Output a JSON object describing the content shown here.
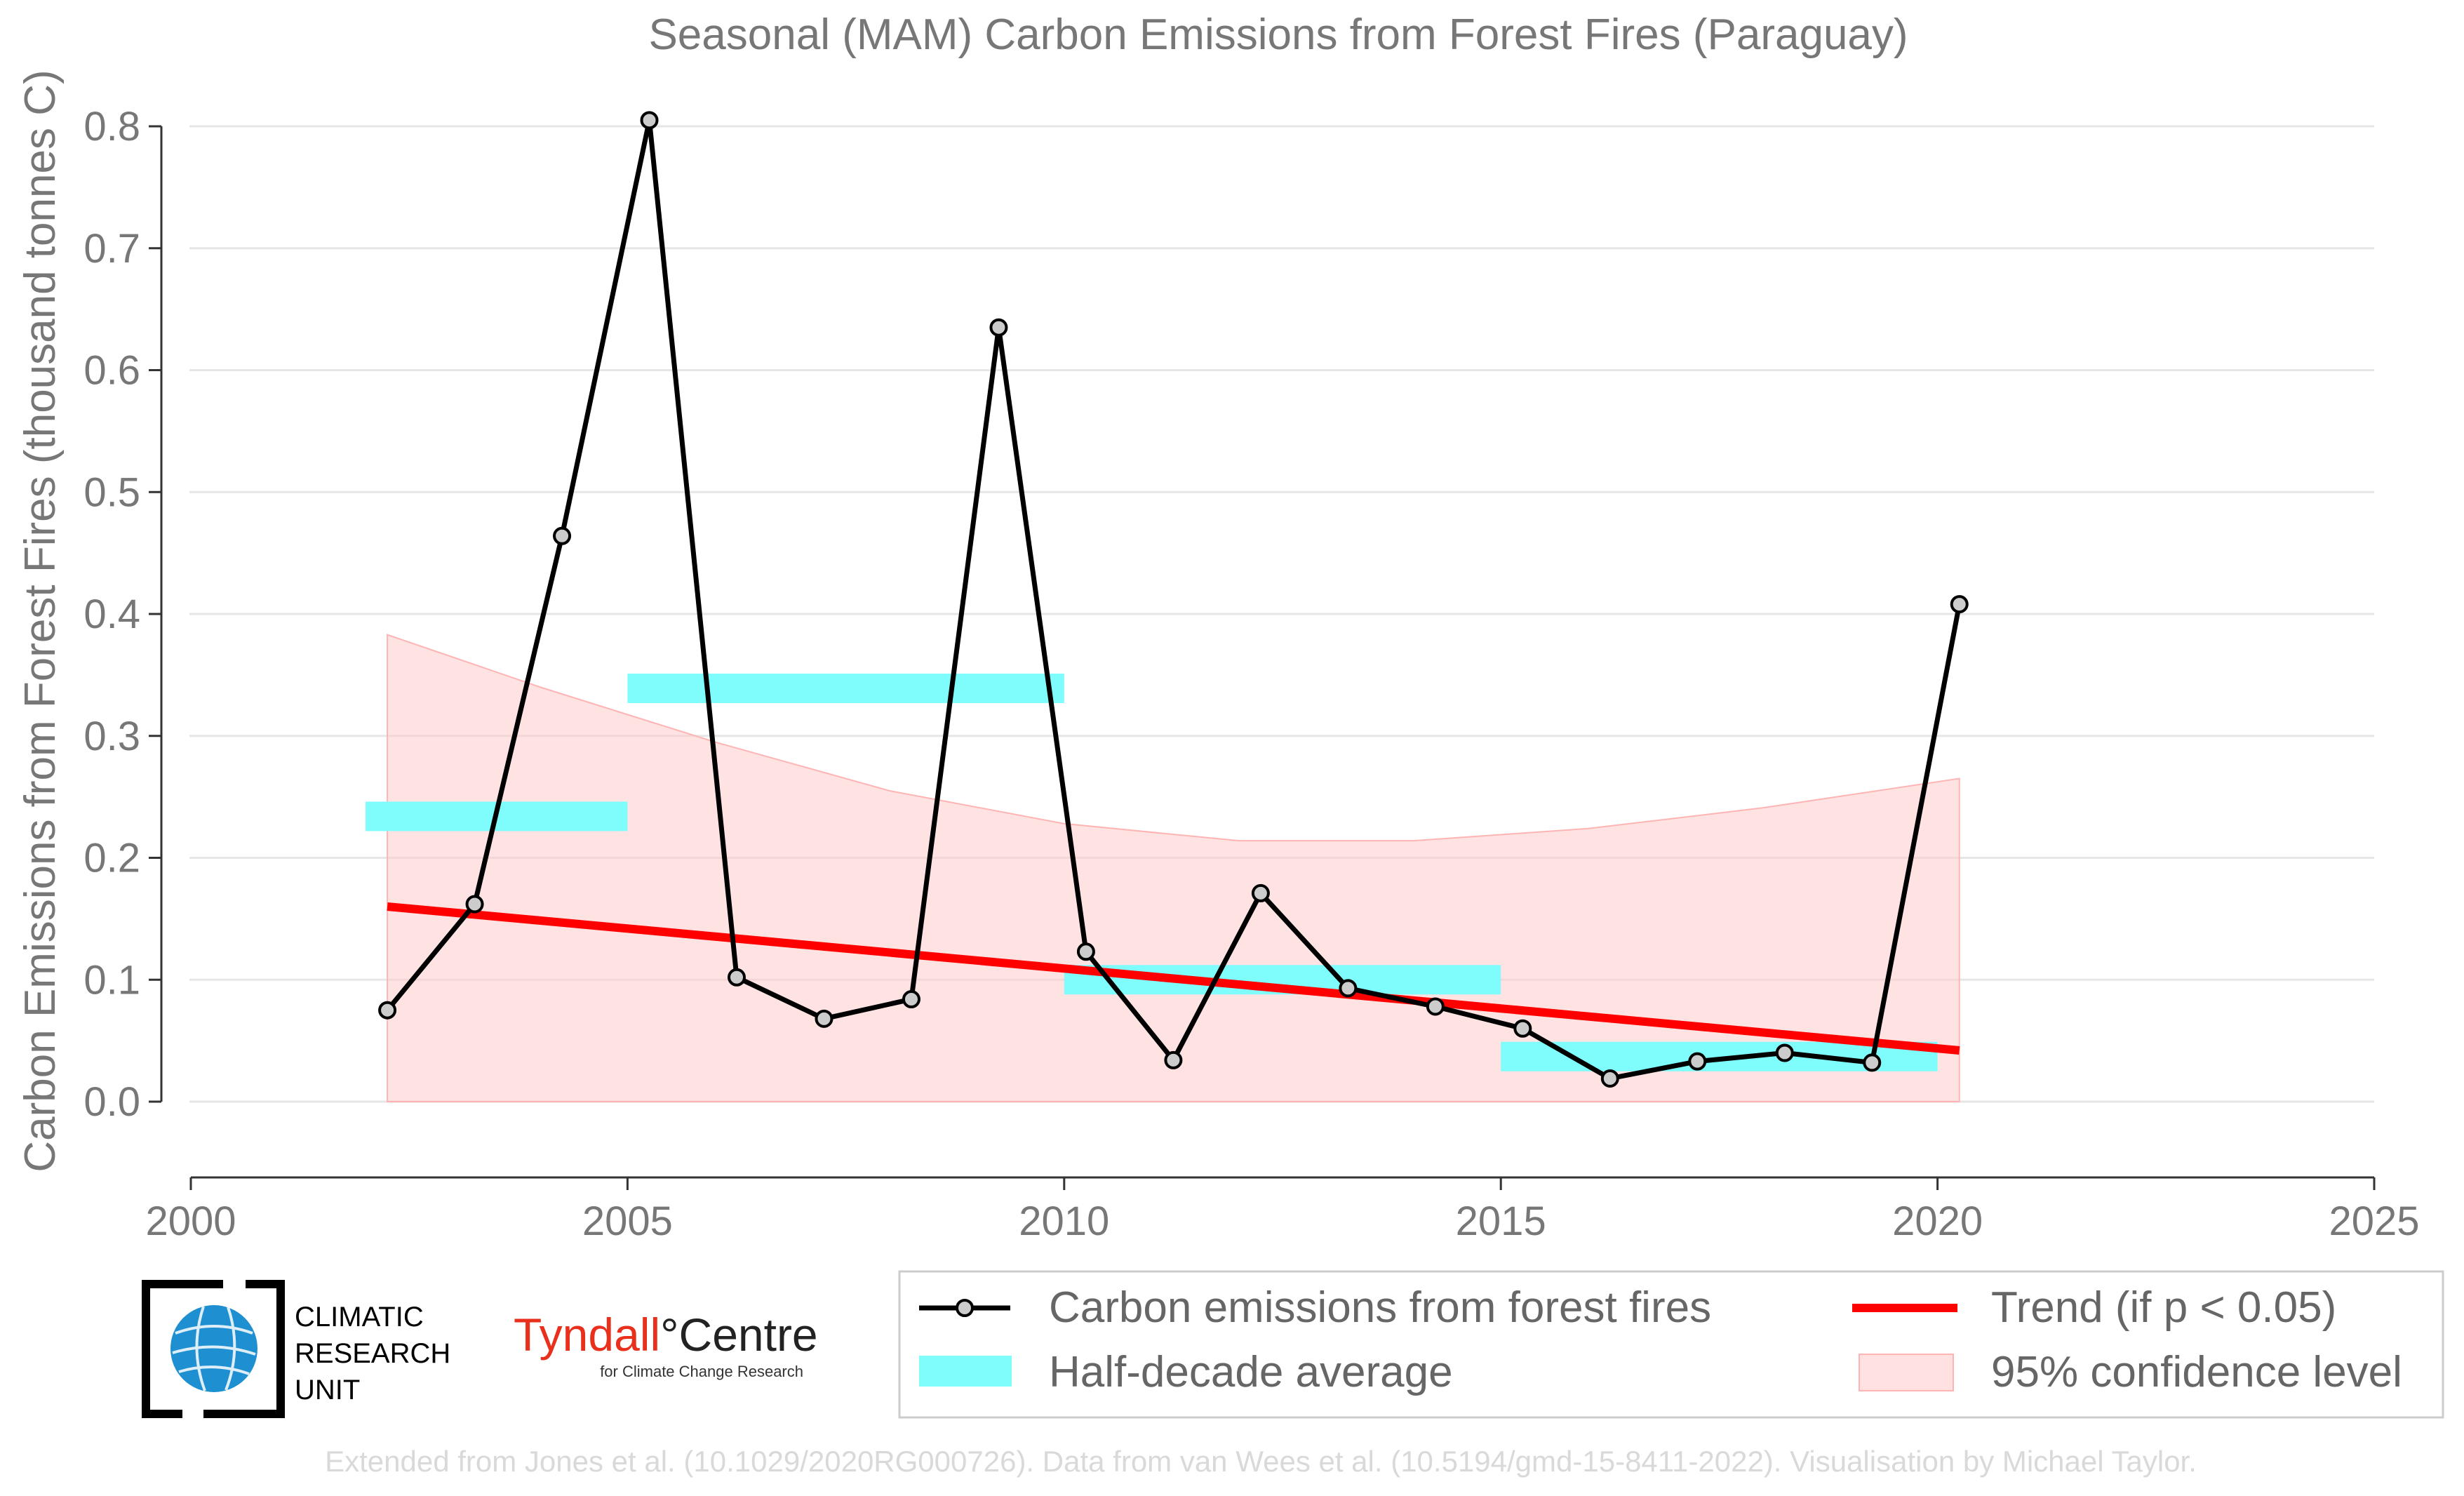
{
  "chart_data": {
    "type": "line",
    "title": "Seasonal (MAM) Carbon Emissions from Forest Fires (Paraguay)",
    "xlabel": "",
    "ylabel": "Carbon Emissions from Forest Fires (thousand tonnes C)",
    "xlim": [
      2000,
      2025
    ],
    "ylim": [
      -0.05,
      0.83
    ],
    "x_ticks": [
      "2000",
      "2005",
      "2010",
      "2015",
      "2020",
      "2025"
    ],
    "y_ticks": [
      "0.0",
      "0.1",
      "0.2",
      "0.3",
      "0.4",
      "0.5",
      "0.6",
      "0.7",
      "0.8"
    ],
    "grid": true,
    "series": [
      {
        "name": "Carbon emissions from forest fires",
        "kind": "line-markers",
        "color": "#000000",
        "x": [
          2002.25,
          2003.25,
          2004.25,
          2005.25,
          2006.25,
          2007.25,
          2008.25,
          2009.25,
          2010.25,
          2011.25,
          2012.25,
          2013.25,
          2014.25,
          2015.25,
          2016.25,
          2017.25,
          2018.25,
          2019.25,
          2020.25
        ],
        "y": [
          0.075,
          0.162,
          0.464,
          0.805,
          0.102,
          0.068,
          0.084,
          0.635,
          0.123,
          0.034,
          0.171,
          0.093,
          0.078,
          0.06,
          0.019,
          0.033,
          0.04,
          0.032,
          0.408
        ]
      },
      {
        "name": "Half-decade average",
        "kind": "bars",
        "color": "#7ffdfd",
        "segments": [
          {
            "x0": 2002.0,
            "x1": 2005.0,
            "y": 0.234
          },
          {
            "x0": 2005.0,
            "x1": 2010.0,
            "y": 0.339
          },
          {
            "x0": 2010.0,
            "x1": 2015.0,
            "y": 0.1
          },
          {
            "x0": 2015.0,
            "x1": 2020.0,
            "y": 0.037
          }
        ]
      },
      {
        "name": "Trend (if p < 0.05)",
        "kind": "trend",
        "color": "#ff0000",
        "x": [
          2002.25,
          2020.25
        ],
        "y": [
          0.16,
          0.042
        ]
      },
      {
        "name": "95% confidence level",
        "kind": "band",
        "color": "#ffc8c8",
        "x": [
          2002.25,
          2004,
          2006,
          2008,
          2010,
          2012,
          2014,
          2016,
          2018,
          2020.25
        ],
        "lower": [
          0,
          0,
          0,
          0,
          0,
          0,
          0,
          0,
          0,
          0
        ],
        "upper": [
          0.383,
          0.34,
          0.295,
          0.255,
          0.228,
          0.214,
          0.214,
          0.224,
          0.241,
          0.265
        ]
      }
    ],
    "legend": {
      "placement": "bottom-right",
      "entries": [
        "Carbon emissions from forest fires",
        "Half-decade average",
        "Trend (if p < 0.05)",
        "95% confidence level"
      ]
    }
  },
  "logos": {
    "cru_line1": "CLIMATIC",
    "cru_line2": "RESEARCH",
    "cru_line3": "UNIT",
    "tyndall_name": "Tyndall",
    "tyndall_degree": "°",
    "tyndall_centre": "Centre",
    "tyndall_sub": "for Climate Change Research"
  },
  "credit": "Extended from Jones et al. (10.1029/2020RG000726). Data from van Wees et al. (10.5194/gmd-15-8411-2022). Visualisation by Michael Taylor."
}
